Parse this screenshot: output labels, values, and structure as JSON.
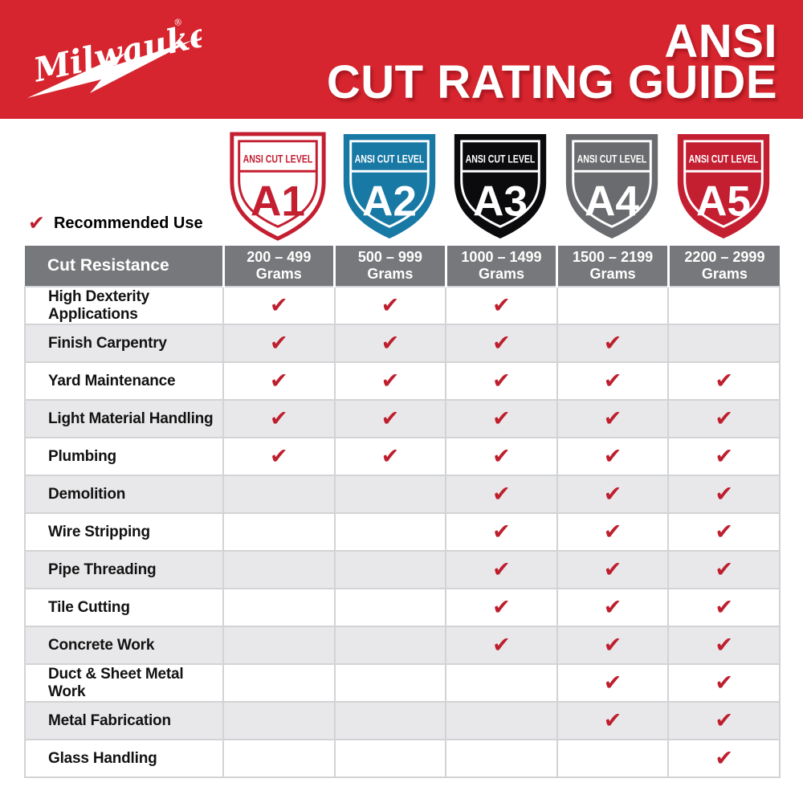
{
  "brand": {
    "name": "Milwaukee",
    "registered_mark": "®"
  },
  "title": {
    "line1": "ANSI",
    "line2": "CUT RATING GUIDE"
  },
  "legend": {
    "check_glyph": "✔",
    "label": "Recommended Use"
  },
  "colors": {
    "banner_red": "#D6252E",
    "check_red": "#BE1E2D",
    "header_gray": "#77787B",
    "alt_row_gray": "#E8E8EA",
    "grid_border": "#D2D3D5",
    "shield_a1": "#C41E31",
    "shield_a2": "#1879A5",
    "shield_a3": "#0B0B0D",
    "shield_a4": "#6A6B6E",
    "shield_a5": "#C41E31"
  },
  "chart_data": {
    "type": "table",
    "title": "ANSI CUT RATING GUIDE",
    "row_header": "Cut Resistance",
    "grams_suffix": "Grams",
    "levels": [
      {
        "id": "A1",
        "band_label": "ANSI CUT LEVEL",
        "grams_range": "200 – 499",
        "style": "outline",
        "color": "#FFFFFF",
        "accent": "#C41E31"
      },
      {
        "id": "A2",
        "band_label": "ANSI CUT LEVEL",
        "grams_range": "500 – 999",
        "style": "solid",
        "color": "#1879A5",
        "accent": "#FFFFFF"
      },
      {
        "id": "A3",
        "band_label": "ANSI CUT LEVEL",
        "grams_range": "1000 – 1499",
        "style": "solid",
        "color": "#0B0B0D",
        "accent": "#FFFFFF"
      },
      {
        "id": "A4",
        "band_label": "ANSI CUT LEVEL",
        "grams_range": "1500 – 2199",
        "style": "solid",
        "color": "#6A6B6E",
        "accent": "#FFFFFF"
      },
      {
        "id": "A5",
        "band_label": "ANSI CUT LEVEL",
        "grams_range": "2200 – 2999",
        "style": "solid",
        "color": "#C41E31",
        "accent": "#FFFFFF"
      }
    ],
    "applications": [
      "High Dexterity Applications",
      "Finish Carpentry",
      "Yard Maintenance",
      "Light Material Handling",
      "Plumbing",
      "Demolition",
      "Wire Stripping",
      "Pipe Threading",
      "Tile Cutting",
      "Concrete Work",
      "Duct & Sheet Metal Work",
      "Metal Fabrication",
      "Glass Handling"
    ],
    "recommended": [
      [
        true,
        true,
        true,
        false,
        false
      ],
      [
        true,
        true,
        true,
        true,
        false
      ],
      [
        true,
        true,
        true,
        true,
        true
      ],
      [
        true,
        true,
        true,
        true,
        true
      ],
      [
        true,
        true,
        true,
        true,
        true
      ],
      [
        false,
        false,
        true,
        true,
        true
      ],
      [
        false,
        false,
        true,
        true,
        true
      ],
      [
        false,
        false,
        true,
        true,
        true
      ],
      [
        false,
        false,
        true,
        true,
        true
      ],
      [
        false,
        false,
        true,
        true,
        true
      ],
      [
        false,
        false,
        false,
        true,
        true
      ],
      [
        false,
        false,
        false,
        true,
        true
      ],
      [
        false,
        false,
        false,
        false,
        true
      ]
    ]
  }
}
